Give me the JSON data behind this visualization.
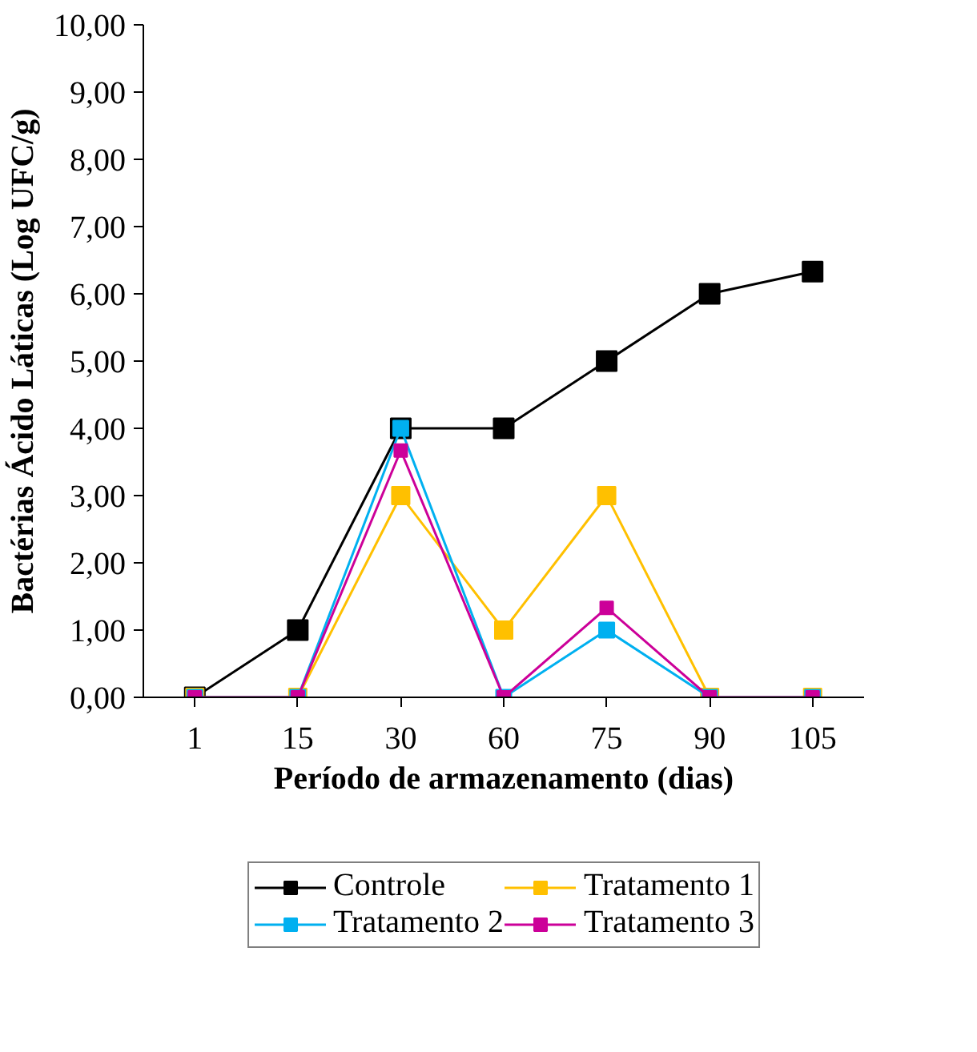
{
  "chart_data": {
    "type": "line",
    "xlabel": "Período de armazenamento (dias)",
    "ylabel": "Bactérias Ácido Láticas (Log UFC/g)",
    "categories": [
      "1",
      "15",
      "30",
      "60",
      "75",
      "90",
      "105"
    ],
    "series": [
      {
        "name": "Controle",
        "color": "#000000",
        "values": [
          0,
          1,
          4,
          4,
          5,
          6,
          6.33
        ]
      },
      {
        "name": "Tratamento 1",
        "color": "#ffc000",
        "values": [
          0,
          0,
          3,
          1,
          3,
          0,
          0
        ]
      },
      {
        "name": "Tratamento 2",
        "color": "#00b0f0",
        "values": [
          0,
          0,
          4,
          0,
          1,
          0,
          0
        ]
      },
      {
        "name": "Tratamento 3",
        "color": "#cc0099",
        "values": [
          0,
          0,
          3.67,
          0,
          1.33,
          0,
          0
        ]
      }
    ],
    "ylim": [
      0,
      10
    ],
    "yticks": [
      {
        "value": 0,
        "label": "0,00"
      },
      {
        "value": 1,
        "label": "1,00"
      },
      {
        "value": 2,
        "label": "2,00"
      },
      {
        "value": 3,
        "label": "3,00"
      },
      {
        "value": 4,
        "label": "4,00"
      },
      {
        "value": 5,
        "label": "5,00"
      },
      {
        "value": 6,
        "label": "6,00"
      },
      {
        "value": 7,
        "label": "7,00"
      },
      {
        "value": 8,
        "label": "8,00"
      },
      {
        "value": 9,
        "label": "9,00"
      },
      {
        "value": 10,
        "label": "10,00"
      }
    ],
    "grid": false,
    "legend": "bottom",
    "marker": "square",
    "line_style": "solid"
  }
}
